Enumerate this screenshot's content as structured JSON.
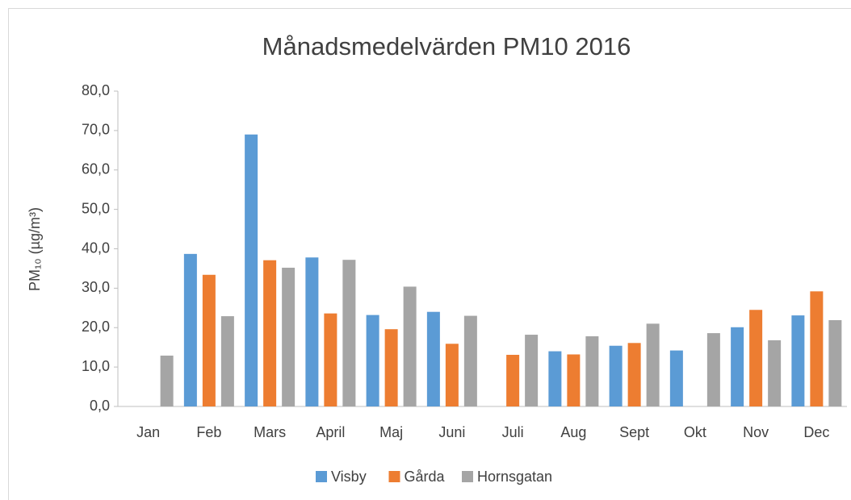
{
  "chart_data": {
    "type": "bar",
    "title": "Månadsmedelvärden PM10 2016",
    "ylabel": "PM₁₀ (µg/m³)",
    "categories": [
      "Jan",
      "Feb",
      "Mars",
      "April",
      "Maj",
      "Juni",
      "Juli",
      "Aug",
      "Sept",
      "Okt",
      "Nov",
      "Dec"
    ],
    "series": [
      {
        "name": "Visby",
        "color": "#5b9bd5",
        "values": [
          null,
          38.7,
          69.0,
          37.8,
          23.2,
          24.0,
          null,
          14.0,
          15.4,
          14.2,
          20.1,
          23.1
        ]
      },
      {
        "name": "Gårda",
        "color": "#ed7d31",
        "values": [
          null,
          33.4,
          37.1,
          23.6,
          19.6,
          15.9,
          13.1,
          13.2,
          16.1,
          null,
          24.5,
          29.2
        ]
      },
      {
        "name": "Hornsgatan",
        "color": "#a5a5a5",
        "values": [
          12.9,
          22.9,
          35.2,
          37.2,
          30.4,
          23.0,
          18.2,
          17.8,
          21.0,
          18.6,
          16.8,
          21.9
        ]
      }
    ],
    "ylim": [
      0,
      80
    ],
    "yticks": [
      {
        "value": 0,
        "label": "0,0"
      },
      {
        "value": 10,
        "label": "10,0"
      },
      {
        "value": 20,
        "label": "20,0"
      },
      {
        "value": 30,
        "label": "30,0"
      },
      {
        "value": 40,
        "label": "40,0"
      },
      {
        "value": 50,
        "label": "50,0"
      },
      {
        "value": 60,
        "label": "60,0"
      },
      {
        "value": 70,
        "label": "70,0"
      },
      {
        "value": 80,
        "label": "80,0"
      }
    ],
    "grid": false,
    "legend": "bottom"
  }
}
